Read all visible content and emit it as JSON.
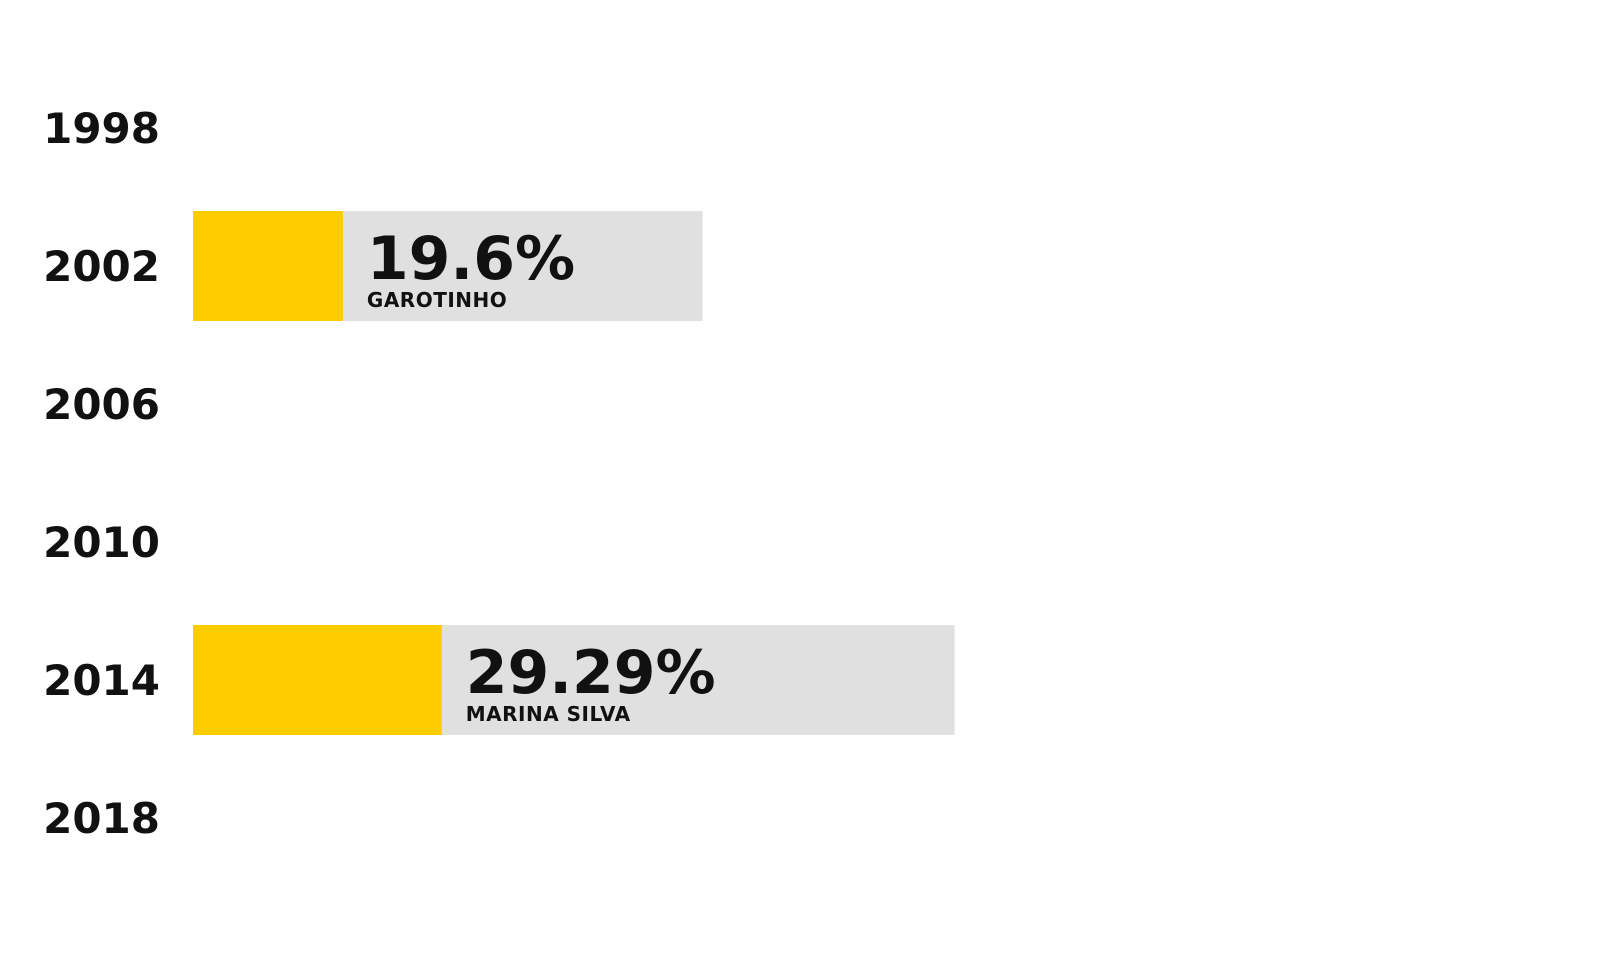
{
  "chart_data": {
    "type": "bar",
    "orientation": "horizontal",
    "categories": [
      "1998",
      "2002",
      "2006",
      "2010",
      "2014",
      "2018"
    ],
    "series": [
      {
        "values": [
          null,
          19.6,
          null,
          null,
          29.29,
          null
        ]
      }
    ],
    "value_labels": [
      "",
      "19.6%",
      "",
      "",
      "29.29%",
      ""
    ],
    "candidates": [
      "",
      "GAROTINHO",
      "",
      "",
      "MARINA SILVA",
      ""
    ],
    "legend": "none",
    "grid": false,
    "colors": {
      "bar": "#FFCC00",
      "track": "#E0E0E0",
      "text": "#111111",
      "background": "#FFFFFF"
    }
  }
}
